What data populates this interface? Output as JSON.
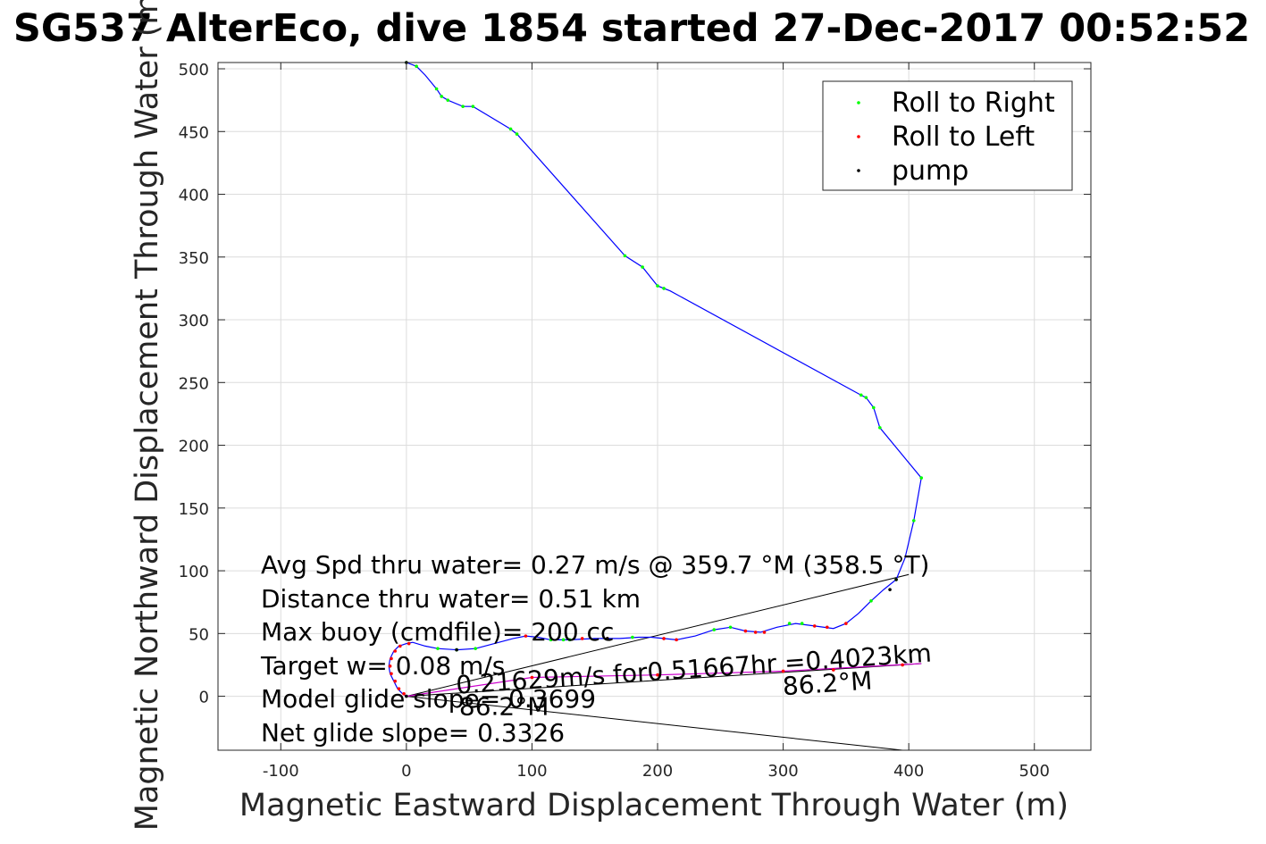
{
  "chart_data": {
    "type": "line",
    "title": "SG537 AlterEco, dive 1854 started 27-Dec-2017 00:52:52",
    "xlabel": "Magnetic Eastward Displacement Through Water (m)",
    "ylabel": "Magnetic Northward Displacement Through Water (m)",
    "xlim": [
      -150,
      545
    ],
    "ylim": [
      -43,
      505
    ],
    "xticks": [
      -100,
      0,
      100,
      200,
      300,
      400,
      500
    ],
    "yticks": [
      0,
      50,
      100,
      150,
      200,
      250,
      300,
      350,
      400,
      450,
      500
    ],
    "grid": true,
    "legend_position": "top-right",
    "legend": [
      {
        "label": "Roll to Right",
        "color": "#00ff00"
      },
      {
        "label": "Roll to Left",
        "color": "#ff0000"
      },
      {
        "label": "pump",
        "color": "#000000"
      }
    ],
    "series": [
      {
        "name": "track",
        "color": "#0000ff",
        "points": [
          [
            0,
            0
          ],
          [
            -3,
            2
          ],
          [
            -7,
            6
          ],
          [
            -10,
            12
          ],
          [
            -13,
            18
          ],
          [
            -14,
            24
          ],
          [
            -13,
            30
          ],
          [
            -10,
            36
          ],
          [
            -6,
            40
          ],
          [
            0,
            42
          ],
          [
            5,
            43
          ],
          [
            15,
            40
          ],
          [
            25,
            38
          ],
          [
            40,
            37
          ],
          [
            55,
            38
          ],
          [
            70,
            42
          ],
          [
            85,
            46
          ],
          [
            95,
            48
          ],
          [
            105,
            47
          ],
          [
            115,
            45
          ],
          [
            130,
            45
          ],
          [
            150,
            46
          ],
          [
            170,
            46
          ],
          [
            185,
            47
          ],
          [
            195,
            47
          ],
          [
            205,
            46
          ],
          [
            215,
            45
          ],
          [
            230,
            48
          ],
          [
            245,
            53
          ],
          [
            258,
            55
          ],
          [
            270,
            52
          ],
          [
            282,
            51
          ],
          [
            295,
            55
          ],
          [
            310,
            58
          ],
          [
            325,
            56
          ],
          [
            340,
            54
          ],
          [
            350,
            58
          ],
          [
            360,
            66
          ],
          [
            370,
            76
          ],
          [
            380,
            85
          ],
          [
            390,
            93
          ],
          [
            397,
            110
          ],
          [
            404,
            140
          ],
          [
            410,
            174
          ],
          [
            377,
            214
          ],
          [
            372,
            230
          ],
          [
            366,
            238
          ],
          [
            362,
            240
          ],
          [
            210,
            323
          ],
          [
            200,
            327
          ],
          [
            188,
            342
          ],
          [
            174,
            351
          ],
          [
            88,
            448
          ],
          [
            83,
            452
          ],
          [
            53,
            470
          ],
          [
            45,
            470
          ],
          [
            33,
            475
          ],
          [
            28,
            478
          ],
          [
            24,
            484
          ],
          [
            15,
            495
          ],
          [
            8,
            502
          ],
          [
            0,
            505
          ]
        ]
      },
      {
        "name": "Roll to Right",
        "color": "#00ff00",
        "points": [
          [
            0,
            505
          ],
          [
            8,
            502
          ],
          [
            24,
            484
          ],
          [
            28,
            478
          ],
          [
            33,
            475
          ],
          [
            45,
            470
          ],
          [
            53,
            470
          ],
          [
            83,
            452
          ],
          [
            88,
            448
          ],
          [
            174,
            351
          ],
          [
            188,
            342
          ],
          [
            200,
            327
          ],
          [
            205,
            325
          ],
          [
            362,
            240
          ],
          [
            366,
            238
          ],
          [
            372,
            230
          ],
          [
            377,
            214
          ],
          [
            410,
            174
          ],
          [
            404,
            140
          ],
          [
            390,
            93
          ],
          [
            370,
            76
          ],
          [
            25,
            38
          ],
          [
            40,
            37
          ],
          [
            55,
            38
          ],
          [
            115,
            45
          ],
          [
            125,
            45
          ],
          [
            130,
            45
          ],
          [
            180,
            47
          ],
          [
            245,
            53
          ],
          [
            258,
            55
          ],
          [
            305,
            58
          ],
          [
            315,
            58
          ]
        ]
      },
      {
        "name": "Roll to Left",
        "color": "#ff0000",
        "points": [
          [
            -2,
            2
          ],
          [
            -6,
            6
          ],
          [
            -9,
            12
          ],
          [
            -12,
            18
          ],
          [
            -13,
            24
          ],
          [
            -12,
            30
          ],
          [
            -9,
            36
          ],
          [
            -5,
            40
          ],
          [
            2,
            42
          ],
          [
            95,
            48
          ],
          [
            140,
            46
          ],
          [
            160,
            46
          ],
          [
            205,
            46
          ],
          [
            215,
            45
          ],
          [
            270,
            52
          ],
          [
            278,
            51
          ],
          [
            285,
            51
          ],
          [
            325,
            56
          ],
          [
            335,
            55
          ],
          [
            350,
            58
          ],
          [
            100,
            15
          ],
          [
            200,
            17
          ],
          [
            300,
            20
          ],
          [
            340,
            21
          ],
          [
            395,
            25
          ]
        ]
      },
      {
        "name": "pump",
        "color": "#000000",
        "points": [
          [
            0,
            505
          ],
          [
            0,
            0
          ],
          [
            40,
            37
          ],
          [
            160,
            46
          ],
          [
            385,
            85
          ],
          [
            390,
            93
          ]
        ]
      },
      {
        "name": "current",
        "color": "#cc00cc",
        "points": [
          [
            0,
            0
          ],
          [
            100,
            15
          ],
          [
            200,
            17
          ],
          [
            300,
            20
          ],
          [
            410,
            26
          ]
        ]
      }
    ],
    "reference_lines": [
      {
        "from": [
          0,
          0
        ],
        "to": [
          400,
          97
        ]
      },
      {
        "from": [
          0,
          0
        ],
        "to": [
          410,
          26
        ]
      },
      {
        "from": [
          0,
          0
        ],
        "to": [
          395,
          -43
        ]
      }
    ],
    "annotations": [
      {
        "text": "0.21629m/s for0.51667hr =0.4023km",
        "x": 40,
        "y": 2,
        "angle": -3.9
      },
      {
        "text": "86.2°M",
        "x": 300,
        "y": 1,
        "angle": -3.9
      },
      {
        "text": "86.2°M",
        "x": 42,
        "y": -15,
        "angle": 0
      }
    ],
    "stats": [
      "Avg Spd thru water=  0.27 m/s @ 359.7 °M (358.5 °T)",
      "Distance thru water=  0.51 km",
      "Max buoy (cmdfile)= 200 cc",
      "Target w= 0.08 m/s",
      "Model glide slope= 0.3699",
      "Net glide slope= 0.3326"
    ]
  }
}
